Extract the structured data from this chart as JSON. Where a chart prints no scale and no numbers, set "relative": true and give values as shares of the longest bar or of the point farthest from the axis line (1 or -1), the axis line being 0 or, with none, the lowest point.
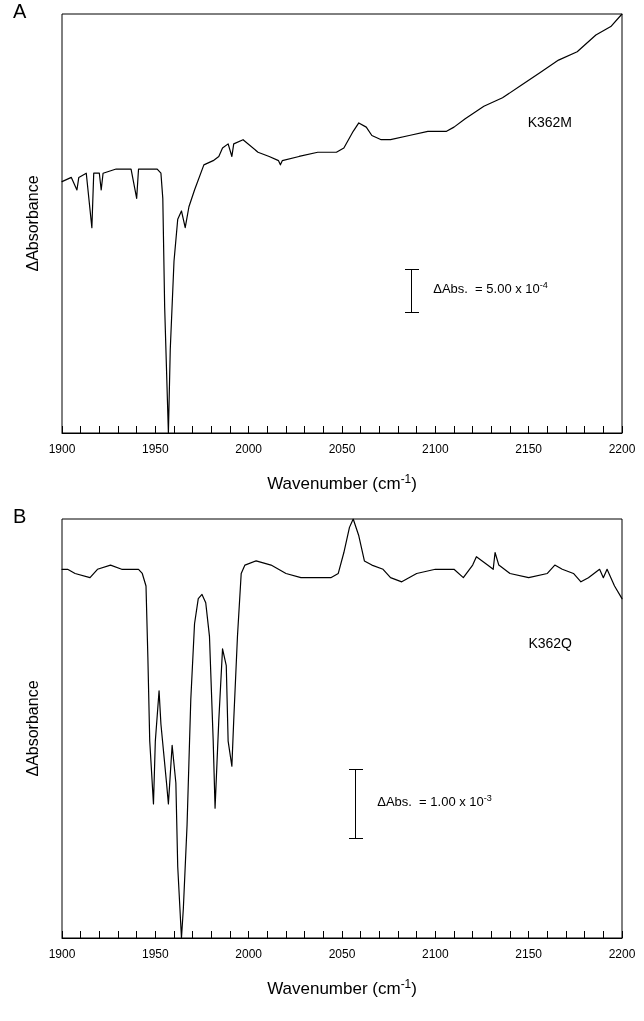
{
  "chart_data": [
    {
      "type": "line",
      "title": "A",
      "xlabel": "Wavenumber (cm$^{-1}$)",
      "ylabel": "ΔAbsorbance",
      "relative": true,
      "grid": false,
      "legend": false,
      "marker": "none",
      "line_style": "solid",
      "xlim": [
        1900,
        2200
      ],
      "xticks": [
        1900,
        {
          "value": 1910,
          "label": null
        },
        {
          "value": 1920,
          "label": null
        },
        {
          "value": 1930,
          "label": null
        },
        {
          "value": 1940,
          "label": null
        },
        1950,
        {
          "value": 1960,
          "label": null
        },
        {
          "value": 1970,
          "label": null
        },
        {
          "value": 1980,
          "label": null
        },
        {
          "value": 1990,
          "label": null
        },
        2000,
        {
          "value": 2010,
          "label": null
        },
        {
          "value": 2020,
          "label": null
        },
        {
          "value": 2030,
          "label": null
        },
        {
          "value": 2040,
          "label": null
        },
        2050,
        {
          "value": 2060,
          "label": null
        },
        {
          "value": 2070,
          "label": null
        },
        {
          "value": 2080,
          "label": null
        },
        {
          "value": 2090,
          "label": null
        },
        2100,
        {
          "value": 2110,
          "label": null
        },
        {
          "value": 2120,
          "label": null
        },
        {
          "value": 2130,
          "label": null
        },
        {
          "value": 2140,
          "label": null
        },
        2150,
        {
          "value": 2160,
          "label": null
        },
        {
          "value": 2170,
          "label": null
        },
        {
          "value": 2180,
          "label": null
        },
        {
          "value": 2190,
          "label": null
        },
        2200
      ],
      "annotations": [
        "ΔAbs.  = 5.00 x 10$^{-4}$"
      ],
      "series": [
        {
          "name": "K362M",
          "color": "#000000",
          "x": [
            1900,
            1905,
            1908,
            1909,
            1913,
            1916,
            1917,
            1920,
            1921,
            1922,
            1929,
            1937,
            1940,
            1941,
            1951,
            1953,
            1954,
            1955,
            1957,
            1958,
            1960,
            1962,
            1964,
            1966,
            1968,
            1971,
            1976,
            1981,
            1984,
            1986,
            1989,
            1991,
            1992,
            1997,
            2005,
            2011,
            2016,
            2017,
            2018,
            2027,
            2037,
            2047,
            2051,
            2056,
            2059,
            2063,
            2066,
            2071,
            2076,
            2086,
            2096,
            2106,
            2110,
            2116,
            2126,
            2136,
            2146,
            2156,
            2166,
            2176,
            2186,
            2194,
            2200
          ],
          "values": [
            0.6,
            0.61,
            0.58,
            0.61,
            0.62,
            0.49,
            0.62,
            0.62,
            0.58,
            0.62,
            0.63,
            0.63,
            0.56,
            0.63,
            0.63,
            0.62,
            0.56,
            0.3,
            0.0,
            0.2,
            0.41,
            0.51,
            0.53,
            0.49,
            0.54,
            0.58,
            0.64,
            0.65,
            0.66,
            0.68,
            0.69,
            0.66,
            0.69,
            0.7,
            0.67,
            0.66,
            0.65,
            0.64,
            0.65,
            0.66,
            0.67,
            0.67,
            0.68,
            0.72,
            0.74,
            0.73,
            0.71,
            0.7,
            0.7,
            0.71,
            0.72,
            0.72,
            0.73,
            0.75,
            0.78,
            0.8,
            0.83,
            0.86,
            0.89,
            0.91,
            0.95,
            0.97,
            1.0
          ]
        }
      ]
    },
    {
      "type": "line",
      "title": "B",
      "xlabel": "Wavenumber (cm$^{-1}$)",
      "ylabel": "ΔAbsorbance",
      "relative": true,
      "grid": false,
      "legend": false,
      "marker": "none",
      "line_style": "solid",
      "xlim": [
        1900,
        2200
      ],
      "xticks": [
        1900,
        {
          "value": 1910,
          "label": null
        },
        {
          "value": 1920,
          "label": null
        },
        {
          "value": 1930,
          "label": null
        },
        {
          "value": 1940,
          "label": null
        },
        1950,
        {
          "value": 1960,
          "label": null
        },
        {
          "value": 1970,
          "label": null
        },
        {
          "value": 1980,
          "label": null
        },
        {
          "value": 1990,
          "label": null
        },
        2000,
        {
          "value": 2010,
          "label": null
        },
        {
          "value": 2020,
          "label": null
        },
        {
          "value": 2030,
          "label": null
        },
        {
          "value": 2040,
          "label": null
        },
        2050,
        {
          "value": 2060,
          "label": null
        },
        {
          "value": 2070,
          "label": null
        },
        {
          "value": 2080,
          "label": null
        },
        {
          "value": 2090,
          "label": null
        },
        2100,
        {
          "value": 2110,
          "label": null
        },
        {
          "value": 2120,
          "label": null
        },
        {
          "value": 2130,
          "label": null
        },
        {
          "value": 2140,
          "label": null
        },
        2150,
        {
          "value": 2160,
          "label": null
        },
        {
          "value": 2170,
          "label": null
        },
        {
          "value": 2180,
          "label": null
        },
        {
          "value": 2190,
          "label": null
        },
        2200
      ],
      "annotations": [
        "ΔAbs.  = 1.00 x 10$^{-3}$"
      ],
      "series": [
        {
          "name": "K362Q",
          "color": "#000000",
          "x": [
            1900,
            1903,
            1907,
            1915,
            1919,
            1926,
            1932,
            1941,
            1943,
            1945,
            1946,
            1947,
            1949,
            1950,
            1952,
            1953,
            1956,
            1957,
            1958,
            1959,
            1961,
            1962,
            1964,
            1965,
            1967,
            1969,
            1971,
            1973,
            1975,
            1977,
            1979,
            1981,
            1982,
            1984,
            1986,
            1988,
            1989,
            1991,
            1992,
            1994,
            1996,
            1998,
            2004,
            2012,
            2020,
            2028,
            2036,
            2044,
            2048,
            2051,
            2054,
            2056,
            2059,
            2062,
            2066,
            2072,
            2076,
            2082,
            2090,
            2100,
            2110,
            2115,
            2120,
            2122,
            2128,
            2131,
            2132,
            2134,
            2140,
            2150,
            2160,
            2164,
            2168,
            2174,
            2178,
            2182,
            2188,
            2190,
            2192,
            2196,
            2200
          ],
          "values": [
            0.88,
            0.88,
            0.87,
            0.86,
            0.88,
            0.89,
            0.88,
            0.88,
            0.87,
            0.84,
            0.67,
            0.47,
            0.32,
            0.47,
            0.59,
            0.51,
            0.37,
            0.32,
            0.39,
            0.46,
            0.37,
            0.17,
            0.0,
            0.07,
            0.27,
            0.57,
            0.75,
            0.81,
            0.82,
            0.8,
            0.72,
            0.47,
            0.31,
            0.52,
            0.69,
            0.65,
            0.47,
            0.41,
            0.52,
            0.72,
            0.87,
            0.89,
            0.9,
            0.89,
            0.87,
            0.86,
            0.86,
            0.86,
            0.87,
            0.92,
            0.98,
            1.0,
            0.96,
            0.9,
            0.89,
            0.88,
            0.86,
            0.85,
            0.87,
            0.88,
            0.88,
            0.86,
            0.89,
            0.91,
            0.89,
            0.88,
            0.92,
            0.89,
            0.87,
            0.86,
            0.87,
            0.89,
            0.88,
            0.87,
            0.85,
            0.86,
            0.88,
            0.86,
            0.88,
            0.84,
            0.81
          ]
        }
      ]
    }
  ]
}
